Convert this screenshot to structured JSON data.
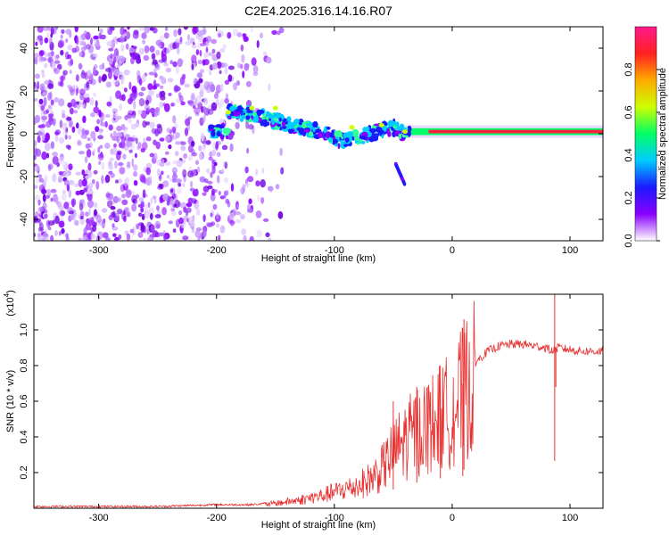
{
  "title": "C2E4.2025.316.14.16.R07",
  "chart_data": [
    {
      "type": "heatmap",
      "name": "spectrogram",
      "xlabel": "Height of straight line (km)",
      "ylabel": "Frequency (Hz)",
      "xlim": [
        -355,
        128
      ],
      "ylim": [
        -50,
        50
      ],
      "xticks": [
        -300,
        -200,
        -100,
        0,
        100
      ],
      "yticks": [
        -40,
        -20,
        0,
        20,
        40
      ],
      "colorbar": {
        "label": "Normalized spectral amplitude",
        "range": [
          0.0,
          1.0
        ],
        "ticks": [
          "0.0",
          "0.2",
          "0.4",
          "0.6",
          "0.8"
        ],
        "tick_values": [
          0.0,
          0.2,
          0.4,
          0.6,
          0.8
        ],
        "colors": [
          "#ffffff",
          "#8a00ff",
          "#1a1aff",
          "#00ccff",
          "#00ff66",
          "#ccff00",
          "#ffaa00",
          "#ff2020",
          "#ff1a8c"
        ]
      },
      "ridge": {
        "x": [
          -190,
          -170,
          -150,
          -130,
          -110,
          -95,
          -80,
          -65,
          -50,
          -40,
          -30,
          -20,
          0,
          20,
          50,
          80,
          110,
          128
        ],
        "y": [
          10,
          9,
          6,
          3,
          1,
          -3,
          -2,
          1,
          3,
          0,
          1,
          1,
          1,
          1,
          1,
          1,
          1,
          1
        ]
      }
    },
    {
      "type": "line",
      "name": "snr",
      "xlabel": "Height of straight line (km)",
      "ylabel": "SNR (10 * v/v)",
      "yscale_label": "(x10",
      "yscale_exp": "4",
      "yscale_close": ")",
      "xlim": [
        -355,
        128
      ],
      "ylim": [
        0,
        1.2
      ],
      "xticks": [
        -300,
        -200,
        -100,
        0,
        100
      ],
      "yticks": [
        0.2,
        0.4,
        0.6,
        0.8,
        1.0
      ],
      "ytick_labels": [
        "0.2",
        "0.4",
        "0.6",
        "0.8",
        "1.0"
      ],
      "color": "#e83030",
      "series": [
        {
          "name": "SNR",
          "x": [
            -355,
            -300,
            -250,
            -200,
            -170,
            -150,
            -130,
            -110,
            -100,
            -90,
            -80,
            -70,
            -60,
            -50,
            -40,
            -30,
            -20,
            -10,
            0,
            10,
            20,
            30,
            40,
            50,
            60,
            70,
            80,
            85,
            90,
            100,
            110,
            120,
            128
          ],
          "y": [
            0.01,
            0.01,
            0.01,
            0.02,
            0.02,
            0.03,
            0.05,
            0.08,
            0.1,
            0.12,
            0.14,
            0.18,
            0.24,
            0.35,
            0.42,
            0.48,
            0.52,
            0.56,
            0.62,
            0.72,
            0.82,
            0.88,
            0.91,
            0.92,
            0.92,
            0.91,
            0.9,
            0.88,
            0.9,
            0.89,
            0.88,
            0.88,
            0.88
          ]
        }
      ],
      "spikes": [
        {
          "x": 10,
          "y": 1.06
        },
        {
          "x": 87,
          "y": 1.2
        },
        {
          "x": -50,
          "y": 0.6
        },
        {
          "x": -30,
          "y": 0.68
        },
        {
          "x": -10,
          "y": 0.8
        }
      ]
    }
  ]
}
